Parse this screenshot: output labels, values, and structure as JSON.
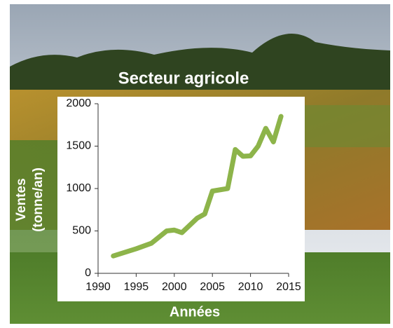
{
  "chart_data": {
    "type": "line",
    "title": "Secteur agricole",
    "x_label": "Années",
    "y_label": [
      "Ventes",
      "(tonne/an)"
    ],
    "x": [
      1992,
      1995,
      1997,
      1999,
      2000,
      2001,
      2003,
      2004,
      2005,
      2007,
      2008,
      2009,
      2010,
      2011,
      2012,
      2013,
      2014
    ],
    "series": [
      {
        "name": "Ventes",
        "color": "#8db44a",
        "values": [
          205,
          290,
          355,
          500,
          510,
          480,
          650,
          700,
          970,
          1000,
          1460,
          1380,
          1385,
          1500,
          1710,
          1550,
          1850
        ]
      }
    ],
    "xlim": [
      1990,
      2015
    ],
    "xticks": [
      1990,
      1995,
      2000,
      2005,
      2010,
      2015
    ],
    "ylim": [
      0,
      2000
    ],
    "yticks": [
      0,
      500,
      1000,
      1500,
      2000
    ],
    "grid": false
  }
}
